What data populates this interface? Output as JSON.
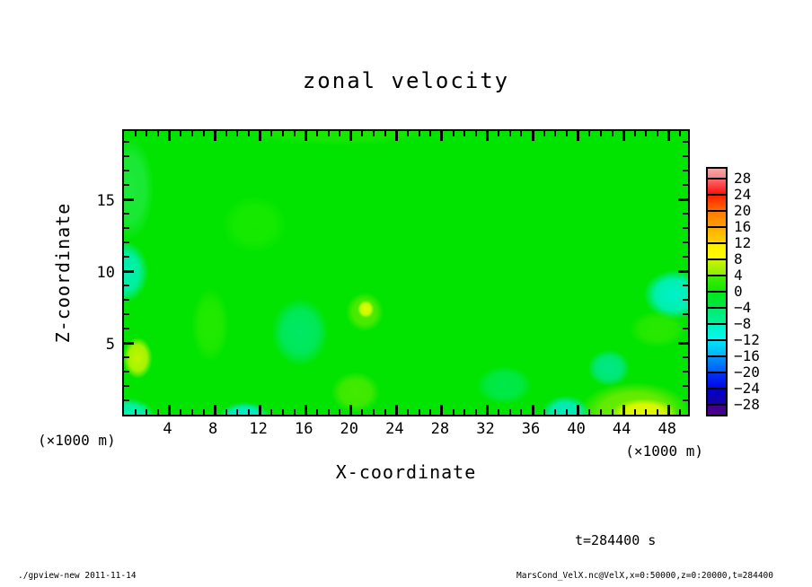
{
  "title": "zonal velocity",
  "annotation": "t=284400 s",
  "footer": {
    "left": "./gpview-new  2011-11-14",
    "right": "MarsCond_VelX.nc@VelX,x=0:50000,z=0:20000,t=284400"
  },
  "axes": {
    "x": {
      "label": "X-coordinate",
      "units": "(×1000 m)",
      "min": 0,
      "max": 50,
      "minor_step": 1,
      "major_step": 4
    },
    "z": {
      "label": "Z-coordinate",
      "units": "(×1000 m)",
      "min": 0,
      "max": 20,
      "minor_step": 1,
      "major_step": 5
    }
  },
  "chart_data": {
    "type": "heatmap",
    "title": "zonal velocity",
    "xlabel": "X-coordinate",
    "ylabel": "Z-coordinate",
    "units_note": "axes in ×1000 m",
    "time_annotation": "t=284400 s",
    "xlim": [
      0,
      50
    ],
    "ylim": [
      0,
      20
    ],
    "x_tick_labels": [
      4,
      8,
      12,
      16,
      20,
      24,
      28,
      32,
      36,
      40,
      44,
      48
    ],
    "z_tick_labels": [
      5,
      10,
      15
    ],
    "base_color": "#00E400",
    "base_value_range": [
      0,
      4
    ],
    "colorbar": {
      "position": "right",
      "tick_labels": [
        "28",
        "24",
        "20",
        "16",
        "12",
        "8",
        "4",
        "0",
        "−4",
        "−8",
        "−12",
        "−16",
        "−20",
        "−24",
        "−28"
      ],
      "cells": [
        {
          "range": ">28",
          "top": "#F7A8A8",
          "bottom": "#F08585"
        },
        {
          "range": "24..28",
          "top": "#FF6A6A",
          "bottom": "#FF0F0F"
        },
        {
          "range": "20..24",
          "top": "#FF2000",
          "bottom": "#FF6A00"
        },
        {
          "range": "16..20",
          "top": "#FF7A00",
          "bottom": "#FF9E00"
        },
        {
          "range": "12..16",
          "top": "#FFAE00",
          "bottom": "#FFD000"
        },
        {
          "range": "8..12",
          "top": "#FFF000",
          "bottom": "#FFFB00"
        },
        {
          "range": "4..8",
          "top": "#C8F500",
          "bottom": "#8CEE00"
        },
        {
          "range": "0..4",
          "top": "#40EE00",
          "bottom": "#12E600"
        },
        {
          "range": "-4..0",
          "top": "#00E81A",
          "bottom": "#00E643"
        },
        {
          "range": "-8..-4",
          "top": "#00EC6E",
          "bottom": "#00F09B"
        },
        {
          "range": "-12..-8",
          "top": "#00F4C4",
          "bottom": "#00F8EE"
        },
        {
          "range": "-16..-12",
          "top": "#00E2F8",
          "bottom": "#00B4F8"
        },
        {
          "range": "-20..-16",
          "top": "#0092F8",
          "bottom": "#005CF8"
        },
        {
          "range": "-24..-20",
          "top": "#0032F8",
          "bottom": "#0008E8"
        },
        {
          "range": "-28..-24",
          "top": "#0000C8",
          "bottom": "#1800A8"
        },
        {
          "range": "<-28",
          "top": "#3C0092",
          "bottom": "#50008C"
        }
      ]
    },
    "features": [
      {
        "name": "cyan-patch-left-mid",
        "x": 0.0,
        "z": 10.2,
        "rx": 3.0,
        "rz": 3.0,
        "color": "#00F2C2",
        "alpha": 0.95,
        "value": -8
      },
      {
        "name": "pale-band-left-upper",
        "x": 0.5,
        "z": 16.0,
        "rx": 3.0,
        "rz": 5.0,
        "color": "#55F2A8",
        "alpha": 0.35,
        "value": -3
      },
      {
        "name": "cyan-patch-left-bottom",
        "x": 0.3,
        "z": 0.2,
        "rx": 3.4,
        "rz": 1.7,
        "color": "#00F6CC",
        "alpha": 0.9,
        "value": -8
      },
      {
        "name": "yellow-patch-left-low",
        "x": 1.2,
        "z": 4.2,
        "rx": 1.8,
        "rz": 2.0,
        "color": "#D6F800",
        "alpha": 0.9,
        "value": 10
      },
      {
        "name": "lime-band-top-edge",
        "x": 19.0,
        "z": 20.0,
        "rx": 12.0,
        "rz": 1.4,
        "color": "#55EE00",
        "alpha": 0.3,
        "value": 3
      },
      {
        "name": "light-green-blob-upper",
        "x": 11.5,
        "z": 13.5,
        "rx": 4.0,
        "rz": 2.8,
        "color": "#33F000",
        "alpha": 0.45,
        "value": 3
      },
      {
        "name": "light-green-column-x8",
        "x": 7.6,
        "z": 6.5,
        "rx": 2.3,
        "rz": 3.6,
        "color": "#44F000",
        "alpha": 0.5,
        "value": 4
      },
      {
        "name": "teal-region-x15",
        "x": 15.5,
        "z": 6.0,
        "rx": 3.5,
        "rz": 3.3,
        "color": "#00E980",
        "alpha": 0.8,
        "value": -5
      },
      {
        "name": "cyan-patch-bottom-x10",
        "x": 10.6,
        "z": 0.0,
        "rx": 3.2,
        "rz": 1.6,
        "color": "#00EEF0",
        "alpha": 0.92,
        "value": -10
      },
      {
        "name": "lime-patch-bottom-x20",
        "x": 20.4,
        "z": 1.8,
        "rx": 3.0,
        "rz": 2.0,
        "color": "#7EF000",
        "alpha": 0.55,
        "value": 5
      },
      {
        "name": "yellow-spot-x21",
        "x": 21.3,
        "z": 7.6,
        "rx": 1.0,
        "rz": 0.85,
        "color": "#E6FF00",
        "alpha": 0.95,
        "value": 10
      },
      {
        "name": "lime-halo-x21",
        "x": 21.2,
        "z": 7.4,
        "rx": 2.3,
        "rz": 1.9,
        "color": "#8CF000",
        "alpha": 0.6,
        "value": 6
      },
      {
        "name": "mint-patch-x34",
        "x": 33.5,
        "z": 2.3,
        "rx": 3.4,
        "rz": 1.9,
        "color": "#00EC88",
        "alpha": 0.55,
        "value": -4
      },
      {
        "name": "cyan-patch-bottom-x39",
        "x": 38.9,
        "z": 0.3,
        "rx": 3.0,
        "rz": 1.8,
        "color": "#00EEDA",
        "alpha": 0.9,
        "value": -8
      },
      {
        "name": "teal-blob-x43",
        "x": 42.7,
        "z": 3.5,
        "rx": 2.6,
        "rz": 1.8,
        "color": "#00E9A8",
        "alpha": 0.8,
        "value": -5
      },
      {
        "name": "lime-tinge-right-mid",
        "x": 47.0,
        "z": 6.2,
        "rx": 3.5,
        "rz": 1.8,
        "color": "#66EE00",
        "alpha": 0.4,
        "value": 4
      },
      {
        "name": "cyan-patch-right-z9",
        "x": 48.5,
        "z": 8.6,
        "rx": 3.8,
        "rz": 2.4,
        "color": "#00F2D6",
        "alpha": 0.95,
        "value": -9
      },
      {
        "name": "yellow-patch-bottom-right",
        "x": 45.8,
        "z": 0.3,
        "rx": 4.0,
        "rz": 1.5,
        "color": "#F0FA00",
        "alpha": 0.95,
        "value": 11
      },
      {
        "name": "lime-halo-bottom-right",
        "x": 45.0,
        "z": 0.5,
        "rx": 6.8,
        "rz": 2.8,
        "color": "#A0F000",
        "alpha": 0.7,
        "value": 7
      }
    ]
  }
}
